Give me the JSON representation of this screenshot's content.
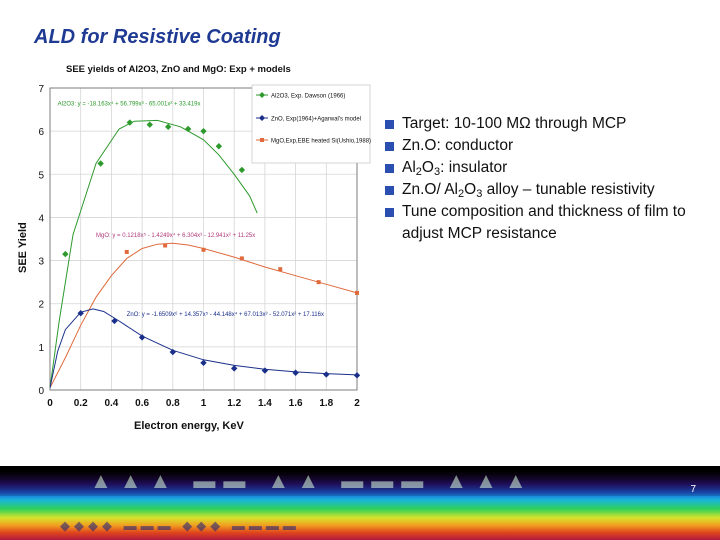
{
  "slide": {
    "title": "ALD for Resistive Coating",
    "page_number": "7",
    "bullets": [
      {
        "parts": [
          {
            "t": "Target: 10-100 MΩ through MCP"
          }
        ]
      },
      {
        "parts": [
          {
            "t": "Zn.O: conductor"
          }
        ]
      },
      {
        "parts": [
          {
            "t": "Al"
          },
          {
            "t": "2",
            "sub": true
          },
          {
            "t": "O"
          },
          {
            "t": "3",
            "sub": true
          },
          {
            "t": ": insulator"
          }
        ]
      },
      {
        "parts": [
          {
            "t": "Zn.O/ Al"
          },
          {
            "t": "2",
            "sub": true
          },
          {
            "t": "O"
          },
          {
            "t": "3",
            "sub": true
          },
          {
            "t": " alloy – tunable resistivity"
          }
        ]
      },
      {
        "parts": [
          {
            "t": "Tune composition and thickness of film to adjust MCP resistance"
          }
        ]
      }
    ],
    "colors": {
      "title": "#1f3a93",
      "bullet_square": "#2a4fb0"
    }
  },
  "chart_data": {
    "type": "scatter",
    "title": "SEE yields of Al2O3, ZnO and MgO: Exp + models",
    "xlabel": "Electron energy, KeV",
    "ylabel": "SEE Yield",
    "xlim": [
      0,
      2
    ],
    "ylim": [
      0,
      7
    ],
    "x_ticks": [
      "0",
      "0.2",
      "0.4",
      "0.6",
      "0.8",
      "1",
      "1.2",
      "1.4",
      "1.6",
      "1.8",
      "2"
    ],
    "y_ticks": [
      "0",
      "1",
      "2",
      "3",
      "4",
      "5",
      "6",
      "7"
    ],
    "grid": true,
    "legend_position": "top-right",
    "series": [
      {
        "name": "Al2O3, Exp. Dawson (1966)",
        "color": "#2e9a2e",
        "marker": "diamond",
        "points": [
          [
            0.1,
            3.15
          ],
          [
            0.33,
            5.25
          ],
          [
            0.52,
            6.2
          ],
          [
            0.65,
            6.15
          ],
          [
            0.77,
            6.1
          ],
          [
            0.9,
            6.05
          ],
          [
            1.0,
            6.0
          ],
          [
            1.1,
            5.65
          ],
          [
            1.25,
            5.1
          ]
        ],
        "fit": [
          [
            0,
            0.05
          ],
          [
            0.06,
            1.6
          ],
          [
            0.15,
            3.6
          ],
          [
            0.3,
            5.25
          ],
          [
            0.45,
            6.05
          ],
          [
            0.55,
            6.23
          ],
          [
            0.7,
            6.25
          ],
          [
            0.85,
            6.1
          ],
          [
            1.0,
            5.8
          ],
          [
            1.1,
            5.45
          ],
          [
            1.2,
            5.0
          ],
          [
            1.3,
            4.5
          ],
          [
            1.35,
            4.1
          ]
        ],
        "equation": "Al2O3: y = -18.163x⁴ + 56.799x³ - 65.001x² + 33.419x"
      },
      {
        "name": "MgO,Exp,EBE heated Si(Ushio,1988)",
        "color": "#e06a3c",
        "marker": "square",
        "points": [
          [
            0.5,
            3.2
          ],
          [
            0.75,
            3.35
          ],
          [
            1.0,
            3.25
          ],
          [
            1.25,
            3.05
          ],
          [
            1.5,
            2.8
          ],
          [
            1.75,
            2.5
          ],
          [
            2.0,
            2.25
          ]
        ],
        "fit": [
          [
            0,
            0.05
          ],
          [
            0.1,
            0.75
          ],
          [
            0.2,
            1.5
          ],
          [
            0.3,
            2.15
          ],
          [
            0.4,
            2.65
          ],
          [
            0.5,
            3.05
          ],
          [
            0.6,
            3.28
          ],
          [
            0.7,
            3.38
          ],
          [
            0.8,
            3.4
          ],
          [
            0.9,
            3.36
          ],
          [
            1.0,
            3.28
          ],
          [
            1.2,
            3.08
          ],
          [
            1.4,
            2.85
          ],
          [
            1.6,
            2.65
          ],
          [
            1.8,
            2.45
          ],
          [
            2.0,
            2.25
          ]
        ],
        "equation": "MgO: y = 0.1218x⁵ - 1.4249x⁴ + 6.304x³ - 12.941x² + 11.25x"
      },
      {
        "name": "ZnO, Exp(1964)+Agarwal's model",
        "color": "#1a2f8a",
        "marker": "diamond",
        "points": [
          [
            0.2,
            1.78
          ],
          [
            0.42,
            1.6
          ],
          [
            0.6,
            1.22
          ],
          [
            0.8,
            0.88
          ],
          [
            1.0,
            0.63
          ],
          [
            1.2,
            0.5
          ],
          [
            1.4,
            0.45
          ],
          [
            1.6,
            0.4
          ],
          [
            1.8,
            0.36
          ],
          [
            2.0,
            0.34
          ]
        ],
        "fit": [
          [
            0,
            0.05
          ],
          [
            0.05,
            0.9
          ],
          [
            0.1,
            1.4
          ],
          [
            0.2,
            1.8
          ],
          [
            0.28,
            1.88
          ],
          [
            0.35,
            1.82
          ],
          [
            0.45,
            1.6
          ],
          [
            0.6,
            1.25
          ],
          [
            0.8,
            0.92
          ],
          [
            1.0,
            0.7
          ],
          [
            1.2,
            0.57
          ],
          [
            1.4,
            0.48
          ],
          [
            1.6,
            0.42
          ],
          [
            1.8,
            0.38
          ],
          [
            2.0,
            0.35
          ]
        ],
        "equation": "ZnO: y = -1.6509x⁶ + 14.357x⁵ - 44.148x⁴ + 67.013x³ - 52.071x² + 17.116x"
      }
    ]
  }
}
